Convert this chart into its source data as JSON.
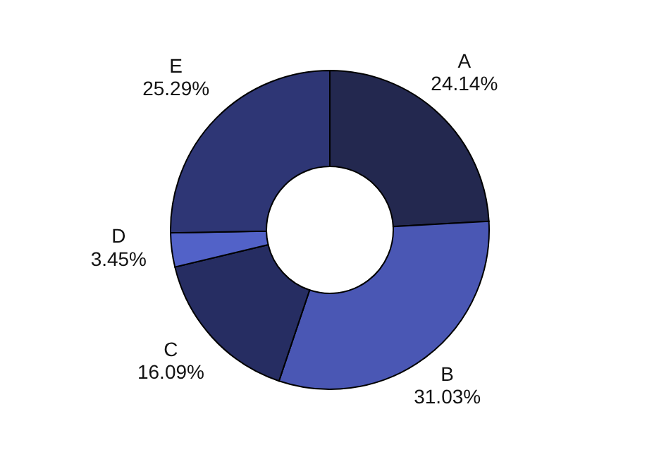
{
  "chart_data": {
    "type": "donut",
    "categories": [
      "A",
      "B",
      "C",
      "D",
      "E"
    ],
    "values": [
      24.14,
      31.03,
      16.09,
      3.45,
      25.29
    ],
    "value_labels": [
      "24.14%",
      "31.03%",
      "16.09%",
      "3.45%",
      "25.29%"
    ],
    "colors": [
      "#23284f",
      "#4a57b4",
      "#262d62",
      "#5262c8",
      "#2e3675"
    ],
    "legend": false
  }
}
